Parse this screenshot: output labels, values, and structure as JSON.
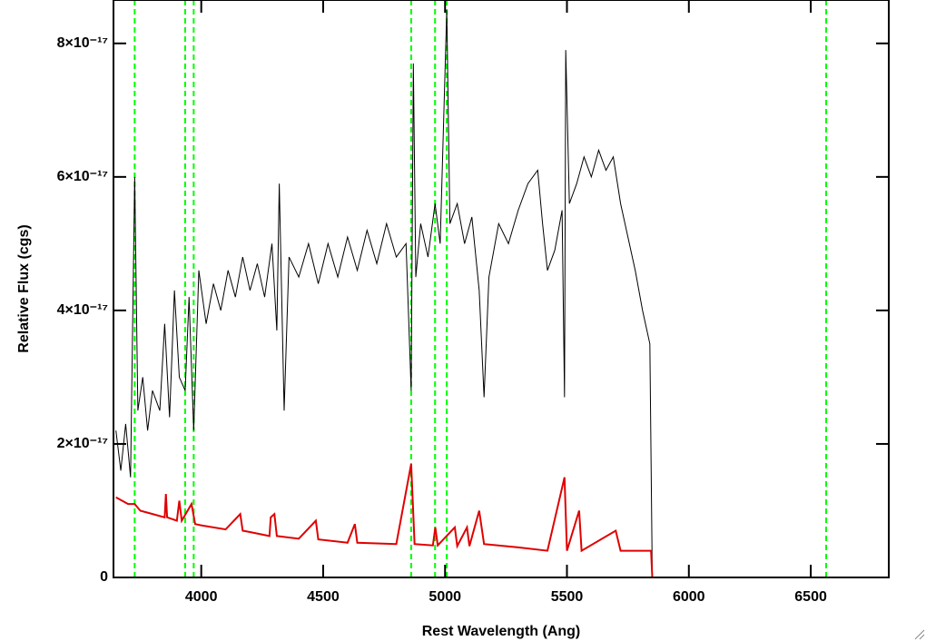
{
  "chart_data": {
    "type": "line",
    "xlabel": "Rest Wavelength (Ang)",
    "ylabel": "Relative Flux (cgs)",
    "xlim": [
      3640,
      6820
    ],
    "ylim": [
      0,
      8.65e-17
    ],
    "xticks": [
      4000,
      4500,
      5000,
      5500,
      6000,
      6500
    ],
    "yticks": [
      0,
      {
        "value": 2e-17,
        "label": "2×10⁻¹⁷"
      },
      {
        "value": 4e-17,
        "label": "4×10⁻¹⁷"
      },
      {
        "value": 6e-17,
        "label": "6×10⁻¹⁷"
      },
      {
        "value": 8e-17,
        "label": "8×10⁻¹⁷"
      }
    ],
    "vlines": {
      "color": "#00ff00",
      "x": [
        3727,
        3934,
        3969,
        4861,
        4959,
        5007,
        6563
      ]
    },
    "series": [
      {
        "color": "#000000",
        "x": [
          3650,
          3670,
          3690,
          3710,
          3727,
          3740,
          3760,
          3780,
          3800,
          3830,
          3850,
          3870,
          3890,
          3910,
          3934,
          3950,
          3969,
          3990,
          4020,
          4050,
          4080,
          4110,
          4140,
          4170,
          4200,
          4230,
          4260,
          4290,
          4310,
          4320,
          4340,
          4360,
          4400,
          4440,
          4480,
          4520,
          4560,
          4600,
          4640,
          4680,
          4720,
          4760,
          4800,
          4840,
          4861,
          4870,
          4880,
          4900,
          4930,
          4959,
          4980,
          5007,
          5020,
          5050,
          5080,
          5110,
          5140,
          5160,
          5180,
          5220,
          5260,
          5300,
          5340,
          5380,
          5400,
          5420,
          5450,
          5480,
          5490,
          5495,
          5510,
          5540,
          5570,
          5600,
          5630,
          5660,
          5690,
          5720,
          5750,
          5780,
          5810,
          5840,
          5850,
          6820
        ],
        "values": [
          2.2e-17,
          1.6e-17,
          2.3e-17,
          1.5e-17,
          6e-17,
          2.5e-17,
          3e-17,
          2.2e-17,
          2.8e-17,
          2.5e-17,
          3.8e-17,
          2.4e-17,
          4.3e-17,
          3e-17,
          2.8e-17,
          4.2e-17,
          2.2e-17,
          4.6e-17,
          3.8e-17,
          4.4e-17,
          4e-17,
          4.6e-17,
          4.2e-17,
          4.8e-17,
          4.3e-17,
          4.7e-17,
          4.2e-17,
          5e-17,
          3.7e-17,
          5.9e-17,
          2.5e-17,
          4.8e-17,
          4.5e-17,
          5e-17,
          4.4e-17,
          5e-17,
          4.5e-17,
          5.1e-17,
          4.6e-17,
          5.2e-17,
          4.7e-17,
          5.3e-17,
          4.8e-17,
          5e-17,
          2.8e-17,
          7.7e-17,
          4.5e-17,
          5.3e-17,
          4.8e-17,
          5.6e-17,
          5e-17,
          8.5e-17,
          5.3e-17,
          5.6e-17,
          5e-17,
          5.4e-17,
          4.3e-17,
          2.7e-17,
          4.5e-17,
          5.3e-17,
          5e-17,
          5.5e-17,
          5.9e-17,
          6.1e-17,
          5.3e-17,
          4.6e-17,
          4.9e-17,
          5.5e-17,
          2.7e-17,
          7.9e-17,
          5.6e-17,
          5.9e-17,
          6.3e-17,
          6e-17,
          6.4e-17,
          6.1e-17,
          6.3e-17,
          5.6e-17,
          5.1e-17,
          4.6e-17,
          4e-17,
          3.5e-17,
          0,
          0
        ]
      },
      {
        "color": "#e00000",
        "x": [
          3650,
          3700,
          3727,
          3750,
          3800,
          3850,
          3855,
          3860,
          3900,
          3910,
          3920,
          3960,
          3975,
          4000,
          4100,
          4160,
          4170,
          4200,
          4280,
          4285,
          4300,
          4310,
          4400,
          4470,
          4480,
          4600,
          4630,
          4640,
          4800,
          4861,
          4875,
          4950,
          4960,
          4970,
          5040,
          5050,
          5090,
          5100,
          5140,
          5160,
          5300,
          5420,
          5490,
          5500,
          5550,
          5560,
          5700,
          5720,
          5845,
          5850,
          6820
        ],
        "values": [
          1.2e-17,
          1.1e-17,
          1.1e-17,
          1e-17,
          9.5e-18,
          9e-18,
          1.25e-17,
          9e-18,
          8.5e-18,
          1.15e-17,
          8.5e-18,
          1.1e-17,
          8e-18,
          7.8e-18,
          7.2e-18,
          9.5e-18,
          7e-18,
          6.8e-18,
          6.2e-18,
          9e-18,
          9.5e-18,
          6.2e-18,
          5.8e-18,
          8.5e-18,
          5.7e-18,
          5.2e-18,
          8e-18,
          5.2e-18,
          5e-18,
          1.7e-17,
          5e-18,
          4.8e-18,
          7.5e-18,
          4.8e-18,
          7.5e-18,
          4.7e-18,
          7.5e-18,
          4.7e-18,
          1e-17,
          5e-18,
          4.5e-18,
          4e-18,
          1.5e-17,
          4e-18,
          1e-17,
          4e-18,
          7e-18,
          4e-18,
          4e-18,
          0,
          0
        ]
      }
    ]
  }
}
